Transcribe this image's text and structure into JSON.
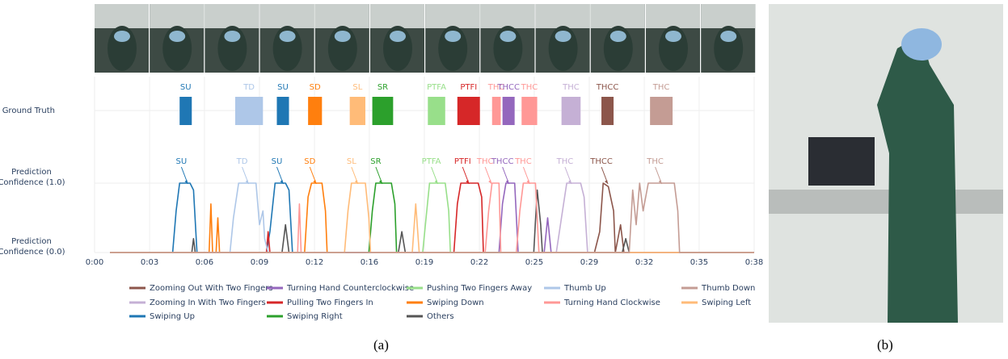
{
  "chart_data": {
    "type": "line",
    "caption_a": "(a)",
    "caption_b": "(b)",
    "ground_truth_label": "Ground Truth",
    "xlim": [
      0,
      38
    ],
    "xticks": [
      {
        "value": 0,
        "label": "0:00"
      },
      {
        "value": 3.17,
        "label": "0:03"
      },
      {
        "value": 6.33,
        "label": "0:06"
      },
      {
        "value": 9.5,
        "label": "0:09"
      },
      {
        "value": 12.67,
        "label": "0:12"
      },
      {
        "value": 15.83,
        "label": "0:16"
      },
      {
        "value": 19,
        "label": "0:19"
      },
      {
        "value": 22.17,
        "label": "0:22"
      },
      {
        "value": 25.33,
        "label": "0:25"
      },
      {
        "value": 28.5,
        "label": "0:29"
      },
      {
        "value": 31.67,
        "label": "0:32"
      },
      {
        "value": 34.83,
        "label": "0:35"
      },
      {
        "value": 38,
        "label": "0:38"
      }
    ],
    "ylim": [
      0,
      1
    ],
    "yticks": [
      {
        "value": 0,
        "label": "Prediction Confidence (0.0)"
      },
      {
        "value": 1,
        "label": "Prediction Confidence (1.0)"
      }
    ],
    "grid": true,
    "ground_truth": [
      {
        "label": "SU",
        "start": 4.9,
        "end": 5.6,
        "color": "#1f77b4"
      },
      {
        "label": "TD",
        "start": 8.1,
        "end": 9.7,
        "color": "#aec7e8"
      },
      {
        "label": "SU",
        "start": 10.5,
        "end": 11.2,
        "color": "#1f77b4"
      },
      {
        "label": "SD",
        "start": 12.3,
        "end": 13.1,
        "color": "#ff7f0e"
      },
      {
        "label": "SL",
        "start": 14.7,
        "end": 15.6,
        "color": "#ffbb78"
      },
      {
        "label": "SR",
        "start": 16.0,
        "end": 17.2,
        "color": "#2ca02c"
      },
      {
        "label": "PTFA",
        "start": 19.2,
        "end": 20.2,
        "color": "#98df8a"
      },
      {
        "label": "PTFI",
        "start": 20.9,
        "end": 22.2,
        "color": "#d62728"
      },
      {
        "label": "THC",
        "start": 22.9,
        "end": 23.4,
        "color": "#ff9896"
      },
      {
        "label": "THCC",
        "start": 23.5,
        "end": 24.2,
        "color": "#9467bd"
      },
      {
        "label": "THC",
        "start": 24.6,
        "end": 25.5,
        "color": "#ff9896"
      },
      {
        "label": "THC",
        "start": 26.9,
        "end": 28.0,
        "color": "#c5b0d5"
      },
      {
        "label": "THCC",
        "start": 29.2,
        "end": 29.9,
        "color": "#8c564b"
      },
      {
        "label": "THC",
        "start": 32.0,
        "end": 33.3,
        "color": "#c49c94"
      }
    ],
    "annotations": [
      {
        "text": "SU",
        "x": 5.0,
        "color": "#1f77b4"
      },
      {
        "text": "TD",
        "x": 8.5,
        "color": "#aec7e8"
      },
      {
        "text": "SU",
        "x": 10.5,
        "color": "#1f77b4"
      },
      {
        "text": "SD",
        "x": 12.4,
        "color": "#ff7f0e"
      },
      {
        "text": "SL",
        "x": 14.8,
        "color": "#ffbb78"
      },
      {
        "text": "SR",
        "x": 16.2,
        "color": "#2ca02c"
      },
      {
        "text": "PTFA",
        "x": 19.4,
        "color": "#98df8a"
      },
      {
        "text": "PTFI",
        "x": 21.2,
        "color": "#d62728"
      },
      {
        "text": "THC",
        "x": 22.5,
        "color": "#ff9896"
      },
      {
        "text": "THCC",
        "x": 23.5,
        "color": "#9467bd"
      },
      {
        "text": "THC",
        "x": 24.7,
        "color": "#ff9896"
      },
      {
        "text": "THC",
        "x": 27.1,
        "color": "#c5b0d5"
      },
      {
        "text": "THCC",
        "x": 29.2,
        "color": "#8c564b"
      },
      {
        "text": "THC",
        "x": 32.3,
        "color": "#c49c94"
      }
    ],
    "series": [
      {
        "name": "Zooming Out With Two Fingers",
        "color": "#8c564b",
        "x": [
          0.9,
          28.8,
          29.1,
          29.3,
          29.6,
          29.9,
          30.0,
          30.3,
          30.5,
          38
        ],
        "values": [
          0,
          0,
          0.3,
          1,
          0.95,
          0.6,
          0,
          0.4,
          0,
          0
        ]
      },
      {
        "name": "Zooming In With Two Fingers",
        "color": "#c5b0d5",
        "x": [
          0.9,
          26.6,
          26.9,
          27.2,
          28.0,
          28.2,
          28.4,
          38
        ],
        "values": [
          0,
          0,
          0.5,
          1,
          1,
          0.8,
          0,
          0
        ]
      },
      {
        "name": "Swiping Up",
        "color": "#1f77b4",
        "x": [
          0.9,
          4.5,
          4.7,
          4.9,
          5.5,
          5.7,
          5.9,
          9.9,
          10.1,
          10.4,
          11.0,
          11.2,
          11.4,
          38
        ],
        "values": [
          0,
          0,
          0.6,
          1,
          1,
          0.9,
          0,
          0,
          0.3,
          1,
          1,
          0.9,
          0,
          0
        ]
      },
      {
        "name": "Turning Hand Counterclockwise",
        "color": "#9467bd",
        "x": [
          0.9,
          23.3,
          23.5,
          23.7,
          24.2,
          24.4,
          25.9,
          26.1,
          26.3,
          38
        ],
        "values": [
          0,
          0,
          0.7,
          1,
          1,
          0,
          0,
          0.5,
          0,
          0
        ]
      },
      {
        "name": "Pulling Two Fingers In",
        "color": "#d62728",
        "x": [
          0.9,
          9.9,
          10.0,
          10.1,
          20.7,
          20.9,
          21.1,
          22.1,
          22.3,
          22.4,
          38
        ],
        "values": [
          0,
          0,
          0.3,
          0,
          0,
          0.7,
          1,
          1,
          0.8,
          0,
          0
        ]
      },
      {
        "name": "Swiping Right",
        "color": "#2ca02c",
        "x": [
          0.9,
          15.8,
          16.0,
          16.2,
          17.1,
          17.3,
          17.4,
          38
        ],
        "values": [
          0,
          0,
          0.6,
          1,
          1,
          0.7,
          0,
          0
        ]
      },
      {
        "name": "Pushing Two Fingers Away",
        "color": "#98df8a",
        "x": [
          0.9,
          18.9,
          19.1,
          19.3,
          20.2,
          20.4,
          20.5,
          38
        ],
        "values": [
          0,
          0,
          0.5,
          1,
          1,
          0.6,
          0,
          0
        ]
      },
      {
        "name": "Swiping Down",
        "color": "#ff7f0e",
        "x": [
          0.9,
          6.6,
          6.7,
          6.8,
          7.0,
          7.1,
          7.2,
          12.1,
          12.3,
          12.5,
          13.1,
          13.3,
          13.4,
          38
        ],
        "values": [
          0,
          0,
          0.7,
          0,
          0,
          0.5,
          0,
          0,
          0.8,
          1,
          1,
          0.6,
          0,
          0
        ]
      },
      {
        "name": "Others",
        "color": "#555555",
        "x": [
          0.9,
          5.6,
          5.7,
          5.8,
          10.8,
          11.0,
          11.2,
          17.5,
          17.7,
          17.9,
          25.3,
          25.5,
          25.7,
          25.8,
          30.4,
          30.6,
          30.8,
          38
        ],
        "values": [
          0,
          0,
          0.2,
          0,
          0,
          0.4,
          0,
          0,
          0.3,
          0,
          0,
          0.9,
          0.4,
          0,
          0,
          0.2,
          0,
          0
        ]
      },
      {
        "name": "Thumb Up",
        "color": "#aec7e8",
        "x": [
          0.9,
          7.8,
          8.0,
          8.3,
          9.3,
          9.5,
          9.7,
          9.8,
          10.0,
          38
        ],
        "values": [
          0,
          0,
          0.5,
          1,
          1,
          0.4,
          0.6,
          0.2,
          0,
          0
        ]
      },
      {
        "name": "Turning Hand Clockwise",
        "color": "#ff9896",
        "x": [
          0.9,
          11.7,
          11.8,
          11.9,
          22.5,
          22.7,
          22.9,
          23.3,
          23.4,
          24.3,
          24.5,
          24.7,
          25.4,
          25.5,
          25.6,
          38
        ],
        "values": [
          0,
          0,
          0.7,
          0,
          0,
          0.6,
          1,
          1,
          0,
          0,
          0.6,
          1,
          1,
          0.5,
          0,
          0
        ]
      },
      {
        "name": "Swiping Left",
        "color": "#ffbb78",
        "x": [
          0.9,
          14.4,
          14.6,
          14.8,
          15.6,
          15.8,
          15.9,
          18.3,
          18.5,
          18.7,
          38
        ],
        "values": [
          0,
          0,
          0.6,
          1,
          1,
          0.5,
          0,
          0,
          0.7,
          0,
          0
        ]
      },
      {
        "name": "Thumb Down",
        "color": "#c49c94",
        "x": [
          0.9,
          30.8,
          31.0,
          31.2,
          31.4,
          31.6,
          31.9,
          33.4,
          33.6,
          33.7,
          38
        ],
        "values": [
          0,
          0,
          0.9,
          0.4,
          1,
          0.6,
          1,
          1,
          0.6,
          0,
          0
        ]
      }
    ]
  }
}
